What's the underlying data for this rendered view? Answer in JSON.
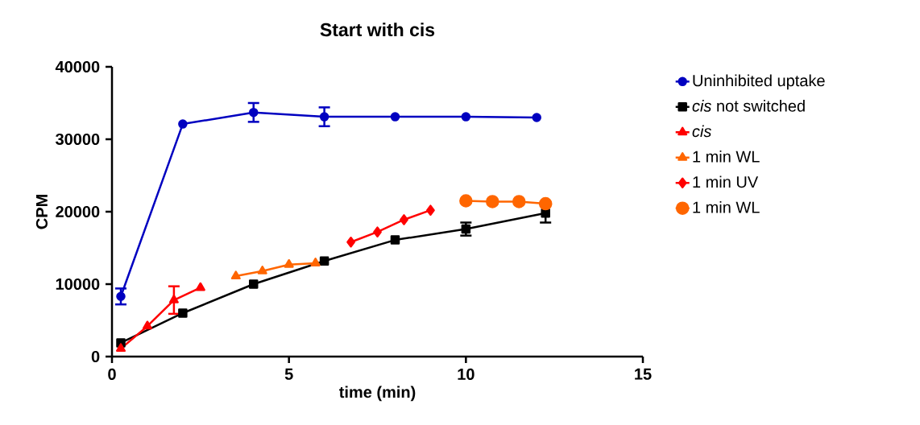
{
  "chart_data": {
    "type": "line",
    "title": "Start with cis",
    "xlabel": "time (min)",
    "ylabel": "CPM",
    "xlim": [
      0,
      15
    ],
    "xticks": [
      0,
      5,
      10,
      15
    ],
    "ylim": [
      0,
      40000
    ],
    "yticks": [
      0,
      10000,
      20000,
      30000,
      40000
    ],
    "grid": false,
    "legend": "right",
    "line_style": "solid",
    "series": [
      {
        "name": "Uninhibited uptake",
        "color": "#0000c0",
        "marker": "circle",
        "x": [
          0.25,
          2,
          4,
          6,
          8,
          10,
          12
        ],
        "values": [
          8300,
          32100,
          33700,
          33100,
          33100,
          33100,
          33000
        ],
        "errors": [
          1100,
          null,
          1300,
          1300,
          null,
          null,
          null
        ]
      },
      {
        "name": "*cis* not switched",
        "color": "#000000",
        "marker": "square",
        "x": [
          0.25,
          2,
          4,
          6,
          8,
          10,
          12.25
        ],
        "values": [
          1900,
          6000,
          10000,
          13200,
          16100,
          17600,
          19800
        ],
        "errors": [
          null,
          null,
          null,
          null,
          null,
          900,
          1300
        ]
      },
      {
        "name": "*cis*",
        "color": "#ff0000",
        "marker": "triangle",
        "x": [
          0.25,
          1,
          1.75,
          2.5
        ],
        "values": [
          1100,
          4200,
          7800,
          9500
        ],
        "errors": [
          null,
          null,
          1900,
          null
        ]
      },
      {
        "name": "1 min WL",
        "color": "#ff6600",
        "marker": "triangle-down",
        "x": [
          3.5,
          4.25,
          5,
          5.75
        ],
        "values": [
          11100,
          11800,
          12700,
          12900
        ]
      },
      {
        "name": "1 min UV",
        "color": "#ff0000",
        "marker": "diamond",
        "x": [
          6.75,
          7.5,
          8.25,
          9
        ],
        "values": [
          15800,
          17200,
          18900,
          20200
        ]
      },
      {
        "name": "1 min WL",
        "color": "#ff6600",
        "marker": "circle-large",
        "x": [
          10,
          10.75,
          11.5,
          12.25
        ],
        "values": [
          21500,
          21400,
          21400,
          21100
        ]
      }
    ]
  }
}
